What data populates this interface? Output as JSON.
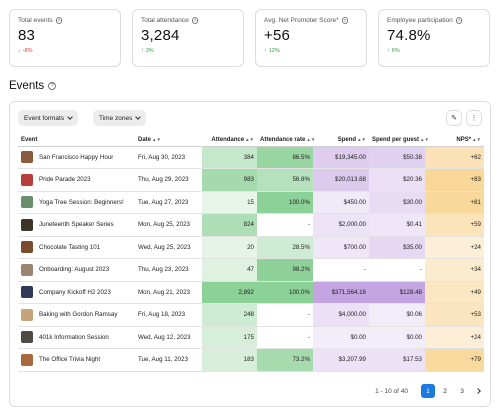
{
  "kpis": [
    {
      "label": "Total events",
      "value": "83",
      "delta": "-8%",
      "dir": "down"
    },
    {
      "label": "Total attendance",
      "value": "3,284",
      "delta": "3%",
      "dir": "up"
    },
    {
      "label": "Avg. Net Promoter Score*",
      "value": "+56",
      "delta": "12%",
      "dir": "up"
    },
    {
      "label": "Employee participation",
      "value": "74.8%",
      "delta": "6%",
      "dir": "up"
    }
  ],
  "section": {
    "title": "Events"
  },
  "toolbar": {
    "filter1": "Event formats",
    "filter2": "Time zones",
    "edit_icon": "pencil-icon",
    "more_icon": "more-vertical-icon"
  },
  "columns": {
    "event": "Event",
    "date": "Date",
    "attendance": "Attendance",
    "rate": "Attendance rate",
    "spend": "Spend",
    "spend_per_guest": "Spend per guest",
    "nps": "NPS*"
  },
  "rows": [
    {
      "event": "San Francisco Happy Hour",
      "date": "Fri, Aug 30, 2023",
      "attendance": "384",
      "att_level": 0.4,
      "rate": "86.5%",
      "rate_level": 0.87,
      "spend": "$19,345.00",
      "spend_level": 0.45,
      "spg": "$50.38",
      "spg_level": 0.4,
      "nps": "+62",
      "nps_level": 0.55
    },
    {
      "event": "Pride Parade 2023",
      "date": "Thu, Aug 29, 2023",
      "attendance": "983",
      "att_level": 0.75,
      "rate": "56.8%",
      "rate_level": 0.57,
      "spend": "$20,013.88",
      "spend_level": 0.48,
      "spg": "$20.36",
      "spg_level": 0.2,
      "nps": "+83",
      "nps_level": 0.85
    },
    {
      "event": "Yoga Tree Session: Beginners!",
      "date": "Tue, Aug 27, 2023",
      "attendance": "15",
      "att_level": 0.05,
      "rate": "100.0%",
      "rate_level": 1.0,
      "spend": "$450.00",
      "spend_level": 0.08,
      "spg": "$30.00",
      "spg_level": 0.25,
      "nps": "+81",
      "nps_level": 0.82
    },
    {
      "event": "Juneteenth Speaker Series",
      "date": "Mon, Aug 25, 2023",
      "attendance": "824",
      "att_level": 0.65,
      "rate": "-",
      "rate_level": null,
      "spend": "$2,000.00",
      "spend_level": 0.15,
      "spg": "$0.41",
      "spg_level": 0.1,
      "nps": "+59",
      "nps_level": 0.5
    },
    {
      "event": "Chocolate Tasting 101",
      "date": "Wed, Aug 25, 2023",
      "attendance": "20",
      "att_level": 0.06,
      "rate": "28.5%",
      "rate_level": 0.3,
      "spend": "$700.00",
      "spend_level": 0.1,
      "spg": "$35.00",
      "spg_level": 0.3,
      "nps": "+24",
      "nps_level": 0.2
    },
    {
      "event": "Onboarding: August 2023",
      "date": "Thu, Aug 23, 2023",
      "attendance": "47",
      "att_level": 0.12,
      "rate": "98.2%",
      "rate_level": 0.98,
      "spend": "-",
      "spend_level": null,
      "spg": "-",
      "spg_level": null,
      "nps": "+34",
      "nps_level": 0.28
    },
    {
      "event": "Company Kickoff H2 2023",
      "date": "Mon, Aug 21, 2023",
      "attendance": "2,892",
      "att_level": 1.0,
      "rate": "100.0%",
      "rate_level": 1.0,
      "spend": "$371,564.16",
      "spend_level": 1.0,
      "spg": "$128.48",
      "spg_level": 1.0,
      "nps": "+49",
      "nps_level": 0.42
    },
    {
      "event": "Baking with Gordon Ramsay",
      "date": "Fri, Aug 18, 2023",
      "attendance": "248",
      "att_level": 0.3,
      "rate": "-",
      "rate_level": null,
      "spend": "$4,000.00",
      "spend_level": 0.2,
      "spg": "$0.06",
      "spg_level": 0.05,
      "nps": "+53",
      "nps_level": 0.46
    },
    {
      "event": "401k Information Session",
      "date": "Wed, Aug 12, 2023",
      "attendance": "175",
      "att_level": 0.22,
      "rate": "-",
      "rate_level": null,
      "spend": "$0.00",
      "spend_level": 0.03,
      "spg": "$0.00",
      "spg_level": 0.03,
      "nps": "+24",
      "nps_level": 0.2
    },
    {
      "event": "The Office Trivia Night",
      "date": "Tue, Aug 11, 2023",
      "attendance": "183",
      "att_level": 0.22,
      "rate": "73.2%",
      "rate_level": 0.73,
      "spend": "$3,207.99",
      "spend_level": 0.18,
      "spg": "$17.53",
      "spg_level": 0.18,
      "nps": "+79",
      "nps_level": 0.8
    }
  ],
  "thumb_colors": [
    "#8a5a3c",
    "#b5413a",
    "#6a8f6b",
    "#3d3326",
    "#7a4b2c",
    "#9a8670",
    "#2f3a5a",
    "#c7a37a",
    "#4f4a44",
    "#a86a3a"
  ],
  "heat_colors": {
    "attendance": "#6cc47a",
    "rate": "#6cc47a",
    "spend": "#b38ad9",
    "spg": "#b38ad9",
    "nps": "#f6c46a"
  },
  "pagination": {
    "range": "1 - 10 of 40",
    "pages": [
      "1",
      "2",
      "3"
    ],
    "active": "1",
    "next_icon": "chevron-right-icon"
  }
}
